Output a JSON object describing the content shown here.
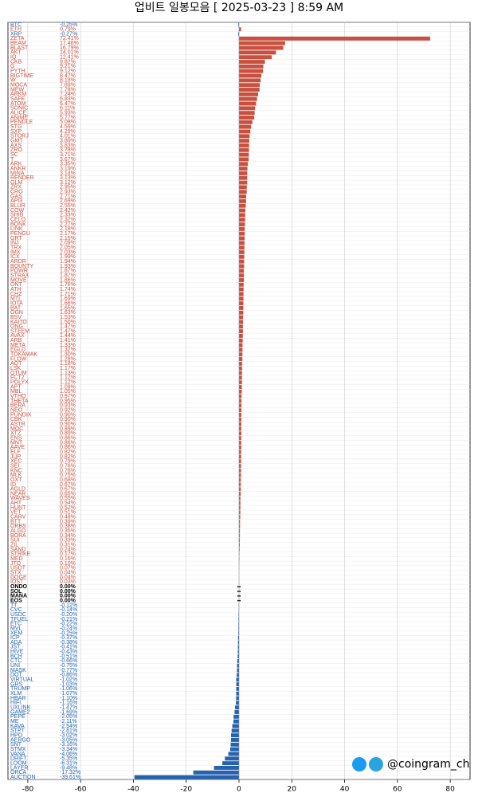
{
  "chart_data": {
    "type": "hbar",
    "title": "업비트 일봉모음 [ 2025-03-23 ]  8:59 AM",
    "categories": [
      "BTC",
      "ETH",
      "XRP",
      "ZETA",
      "BEAM",
      "BLAST",
      "AKT",
      "IQ",
      "CKB",
      "G",
      "PYTH",
      "BIGTIME",
      "W",
      "MOCA",
      "MEW",
      "ARKM",
      "SAFE",
      "ATOM",
      "SONIC",
      "ALICE",
      "ANIME",
      "PENDLE",
      "STG",
      "SXP",
      "STORJ",
      "GMT",
      "AXS",
      "ZRO",
      "SC",
      "T",
      "ARK",
      "ANKR",
      "MINA",
      "RENDER",
      "GLM",
      "ZRX",
      "CRO",
      "GAS",
      "API3",
      "BLUR",
      "COW",
      "SHIB",
      "CELO",
      "BONK",
      "LINK",
      "PENGU",
      "GRT",
      "INJ",
      "TRX",
      "IMX",
      "ICX",
      "ARDR",
      "BOUNTY",
      "POWR",
      "STRAX",
      "MOVE",
      "ONT",
      "ATH",
      "CHZ",
      "MTL",
      "IOTA",
      "BAT",
      "OGN",
      "BSV",
      "KAITO",
      "ONG",
      "STEEM",
      "AVAX",
      "ARB",
      "META",
      "EGLD",
      "TOKAMAK",
      "FLOW",
      "AQT",
      "LSK",
      "QTUM",
      "FCT2",
      "POLYX",
      "APT",
      "MBL",
      "VTHO",
      "THETA",
      "BERA",
      "NEO",
      "PUNDIX",
      "CBK",
      "ASTR",
      "MOC",
      "XTZ",
      "ENS",
      "MNT",
      "AAVE",
      "ELF",
      "JUP",
      "XEC",
      "SEI",
      "KNC",
      "MLK",
      "OXT",
      "ID",
      "AGLD",
      "NEAR",
      "WAVES",
      "AHT",
      "HUNT",
      "VET",
      "CARV",
      "BTT",
      "ORBS",
      "ALGO",
      "BORA",
      "SUI",
      "ZIL",
      "SAND",
      "STRIKE",
      "MED",
      "JTO",
      "USDT",
      "STX",
      "DOGE",
      "IOST",
      "ONDO",
      "SOL",
      "MANA",
      "EOS",
      "TT",
      "CVC",
      "USDC",
      "TFUEL",
      "ETC",
      "MVL",
      "XEM",
      "ICP",
      "ADA",
      "JST",
      "HIVE",
      "BCH",
      "CTC",
      "UNI",
      "MASK",
      "DOT",
      "VIRTUAL",
      "GRS",
      "TRUMP",
      "XLM",
      "HBAR",
      "HIFI",
      "UXLINK",
      "GAME2",
      "PEPE",
      "ME",
      "KAVA",
      "STPT",
      "HPO",
      "AERGO",
      "SNT",
      "STMX",
      "VANA",
      "DRIFT",
      "LOOM",
      "LAYER",
      "ORCA",
      "AUCTION"
    ],
    "values": [
      -0.25,
      0.79,
      -0.27,
      72.41,
      17.46,
      16.79,
      14.01,
      12.41,
      9.82,
      9.21,
      9.12,
      8.47,
      8.18,
      7.89,
      7.78,
      7.24,
      6.83,
      6.47,
      6.11,
      5.93,
      5.77,
      5.08,
      4.59,
      4.29,
      4.01,
      3.89,
      3.83,
      3.78,
      3.71,
      3.67,
      3.35,
      3.19,
      3.14,
      3.13,
      3.12,
      2.95,
      2.93,
      2.71,
      2.69,
      2.55,
      2.42,
      2.33,
      2.32,
      2.27,
      2.18,
      2.17,
      2.15,
      2.09,
      2.05,
      2.03,
      1.99,
      1.94,
      1.93,
      1.87,
      1.87,
      1.86,
      1.76,
      1.74,
      1.71,
      1.69,
      1.66,
      1.65,
      1.63,
      1.53,
      1.5,
      1.47,
      1.47,
      1.44,
      1.41,
      1.33,
      1.32,
      1.3,
      1.28,
      1.18,
      1.17,
      1.13,
      1.12,
      1.12,
      1.09,
      1.05,
      0.97,
      0.95,
      0.93,
      0.92,
      0.9,
      0.9,
      0.9,
      0.89,
      0.89,
      0.86,
      0.86,
      0.86,
      0.82,
      0.82,
      0.79,
      0.76,
      0.76,
      0.75,
      0.68,
      0.67,
      0.67,
      0.65,
      0.55,
      0.54,
      0.52,
      0.51,
      0.48,
      0.39,
      0.38,
      0.35,
      0.34,
      0.33,
      0.31,
      0.24,
      0.17,
      0.16,
      0.1,
      0.07,
      0.04,
      0.04,
      0.03,
      0,
      0,
      0,
      0,
      -0.12,
      -0.14,
      -0.2,
      -0.21,
      -0.22,
      -0.24,
      -0.25,
      -0.37,
      -0.38,
      -0.41,
      -0.43,
      -0.51,
      -0.66,
      -0.75,
      -0.77,
      -0.86,
      -1.02,
      -1.03,
      -1.06,
      -1.07,
      -1.1,
      -1.16,
      -1.47,
      -1.69,
      -2.05,
      -2.11,
      -2.54,
      -2.81,
      -3.02,
      -3.05,
      -3.16,
      -3.34,
      -4.06,
      -5.35,
      -6.31,
      -9.48,
      -17.32,
      -39.61
    ],
    "value_labels": [
      "-0.25%",
      "0.79%",
      "-0.27%",
      "72.41%",
      "17.46%",
      "16.79%",
      "14.01%",
      "12.41%",
      "9.82%",
      "9.21%",
      "9.12%",
      "8.47%",
      "8.18%",
      "7.89%",
      "7.78%",
      "7.24%",
      "6.83%",
      "6.47%",
      "6.11%",
      "5.93%",
      "5.77%",
      "5.08%",
      "4.59%",
      "4.29%",
      "4.01%",
      "3.89%",
      "3.83%",
      "3.78%",
      "3.71%",
      "3.67%",
      "3.35%",
      "3.19%",
      "3.14%",
      "3.13%",
      "3.12%",
      "2.95%",
      "2.93%",
      "2.71%",
      "2.69%",
      "2.55%",
      "2.42%",
      "2.33%",
      "2.32%",
      "2.27%",
      "2.18%",
      "2.17%",
      "2.15%",
      "2.09%",
      "2.05%",
      "2.03%",
      "1.99%",
      "1.94%",
      "1.93%",
      "1.87%",
      "1.87%",
      "1.86%",
      "1.76%",
      "1.74%",
      "1.71%",
      "1.69%",
      "1.66%",
      "1.65%",
      "1.63%",
      "1.53%",
      "1.50%",
      "1.47%",
      "1.47%",
      "1.44%",
      "1.41%",
      "1.33%",
      "1.32%",
      "1.30%",
      "1.28%",
      "1.18%",
      "1.17%",
      "1.13%",
      "1.12%",
      "1.12%",
      "1.09%",
      "1.05%",
      "0.97%",
      "0.95%",
      "0.93%",
      "0.92%",
      "0.90%",
      "0.90%",
      "0.90%",
      "0.89%",
      "0.89%",
      "0.86%",
      "0.86%",
      "0.86%",
      "0.82%",
      "0.82%",
      "0.79%",
      "0.76%",
      "0.76%",
      "0.75%",
      "0.68%",
      "0.67%",
      "0.67%",
      "0.65%",
      "0.55%",
      "0.54%",
      "0.52%",
      "0.51%",
      "0.48%",
      "0.39%",
      "0.38%",
      "0.35%",
      "0.34%",
      "0.33%",
      "0.31%",
      "0.24%",
      "0.17%",
      "0.16%",
      "0.10%",
      "0.07%",
      "0.04%",
      "0.04%",
      "0.03%",
      "0.00%",
      "0.00%",
      "0.00%",
      "0.00%",
      "-0.12%",
      "-0.14%",
      "-0.20%",
      "-0.21%",
      "-0.22%",
      "-0.24%",
      "-0.25%",
      "-0.37%",
      "-0.38%",
      "-0.41%",
      "-0.43%",
      "-0.51%",
      "-0.66%",
      "-0.75%",
      "-0.77%",
      "-0.86%",
      "-1.02%",
      "-1.03%",
      "-1.06%",
      "-1.07%",
      "-1.10%",
      "-1.16%",
      "-1.47%",
      "-1.69%",
      "-2.05%",
      "-2.11%",
      "-2.54%",
      "-2.81%",
      "-3.02%",
      "-3.05%",
      "-3.16%",
      "-3.34%",
      "-4.06%",
      "-5.35%",
      "-6.31%",
      "-9.48%",
      "-17.32%",
      "-39.61%"
    ],
    "positive_color": "#c9503f",
    "negative_color": "#2563b0",
    "zero_color": "#000000",
    "xlim": [
      -87.5,
      87.5
    ],
    "xticks": [
      -80,
      -60,
      -40,
      -20,
      0,
      20,
      40,
      60,
      80
    ],
    "grid": true,
    "watermark": "@coingram_ch"
  }
}
